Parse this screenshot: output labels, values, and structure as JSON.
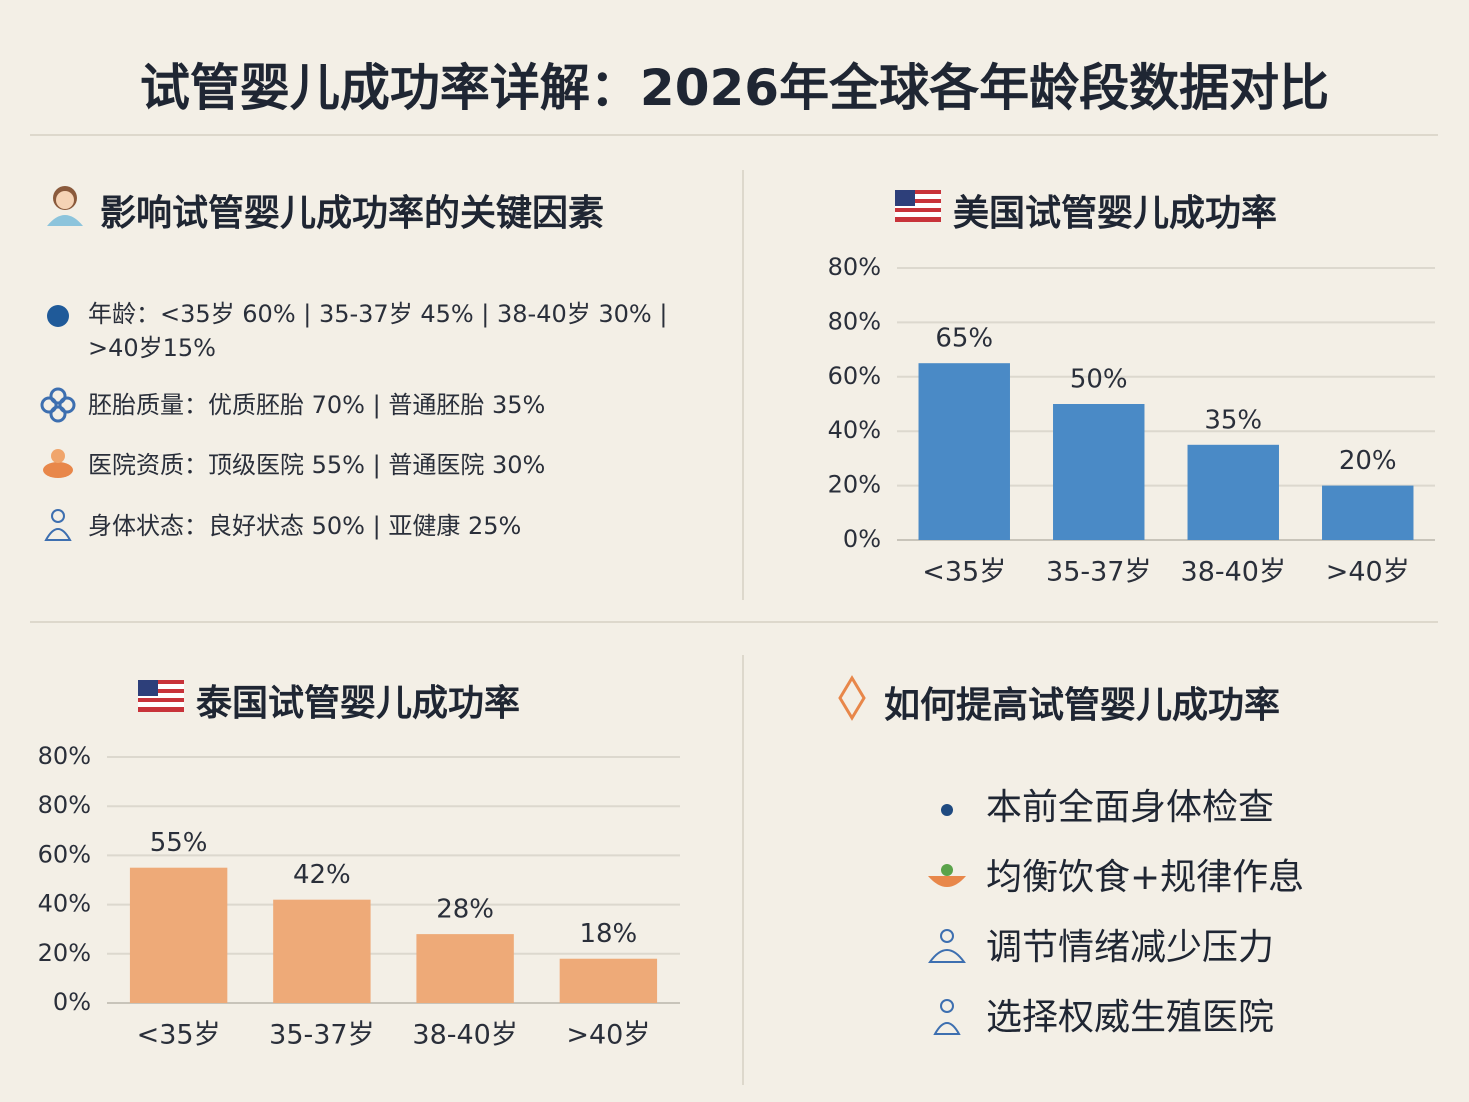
{
  "title": "试管婴儿成功率详解：2026年全球各年龄段数据对比",
  "factors": {
    "heading": "影响试管婴儿成功率的关键因素",
    "items": [
      "年龄：<35岁 60% | 35-37岁 45% | 38-40岁 30% | >40岁15%",
      "胚胎质量：优质胚胎 70% | 普通胚胎 35%",
      "医院资质：顶级医院 55% | 普通医院 30%",
      "身体状态：良好状态 50% | 亚健康 25%"
    ]
  },
  "chart_data": [
    {
      "type": "bar",
      "title": "美国试管婴儿成功率",
      "categories": [
        "<35岁",
        "35-37岁",
        "38-40岁",
        ">40岁"
      ],
      "values": [
        65,
        50,
        35,
        20
      ],
      "value_labels": [
        "65%",
        "50%",
        "35%",
        "20%"
      ],
      "color": "#4a8ac6",
      "ylim": [
        0,
        100
      ],
      "yticks": [
        {
          "value": 0,
          "label": "0%"
        },
        {
          "value": 20,
          "label": "20%"
        },
        {
          "value": 40,
          "label": "40%"
        },
        {
          "value": 60,
          "label": "60%"
        },
        {
          "value": 80,
          "label": "80%"
        }
      ],
      "extra_ytick_label": "80%",
      "grid": true
    },
    {
      "type": "bar",
      "title": "泰国试管婴儿成功率",
      "categories": [
        "<35岁",
        "35-37岁",
        "38-40岁",
        ">40岁"
      ],
      "values": [
        55,
        42,
        28,
        18
      ],
      "value_labels": [
        "55%",
        "42%",
        "28%",
        "18%"
      ],
      "color": "#eeaa78",
      "ylim": [
        0,
        100
      ],
      "yticks": [
        {
          "value": 0,
          "label": "0%"
        },
        {
          "value": 20,
          "label": "20%"
        },
        {
          "value": 40,
          "label": "40%"
        },
        {
          "value": 60,
          "label": "60%"
        },
        {
          "value": 80,
          "label": "80%"
        }
      ],
      "extra_ytick_label": "80%",
      "grid": true
    }
  ],
  "tips": {
    "heading": "如何提高试管婴儿成功率",
    "items": [
      "本前全面身体检查",
      "均衡饮食+规律作息",
      "调节情绪减少压力",
      "选择权威生殖医院"
    ]
  }
}
